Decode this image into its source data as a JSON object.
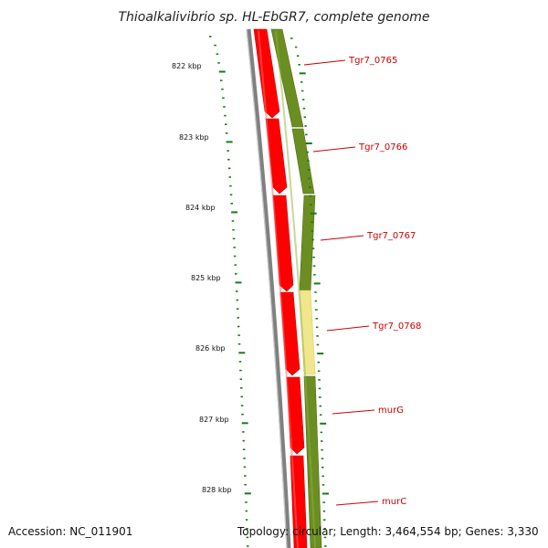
{
  "title": "Thioalkalivibrio sp. HL-EbGR7, complete genome",
  "accession": "Accession: NC_011901",
  "summary": "Topology: circular; Length: 3,464,554 bp; Genes: 3,330",
  "ruler_labels": [
    "822 kbp",
    "823 kbp",
    "824 kbp",
    "825 kbp",
    "826 kbp",
    "827 kbp",
    "828 kbp"
  ],
  "genes": [
    "Tgr7_0765",
    "Tgr7_0766",
    "Tgr7_0767",
    "Tgr7_0768",
    "murG",
    "murC"
  ],
  "colors": {
    "cds_red": "#ff0000",
    "cds_dark": "#cc0000",
    "olive": "#6b8e23",
    "olive_dark": "#4f6b14",
    "highlight_yellow": "#f0e68c",
    "backbone_gray": "#808080",
    "tick_green": "#1a7a1a",
    "label_red": "#cc0000"
  }
}
